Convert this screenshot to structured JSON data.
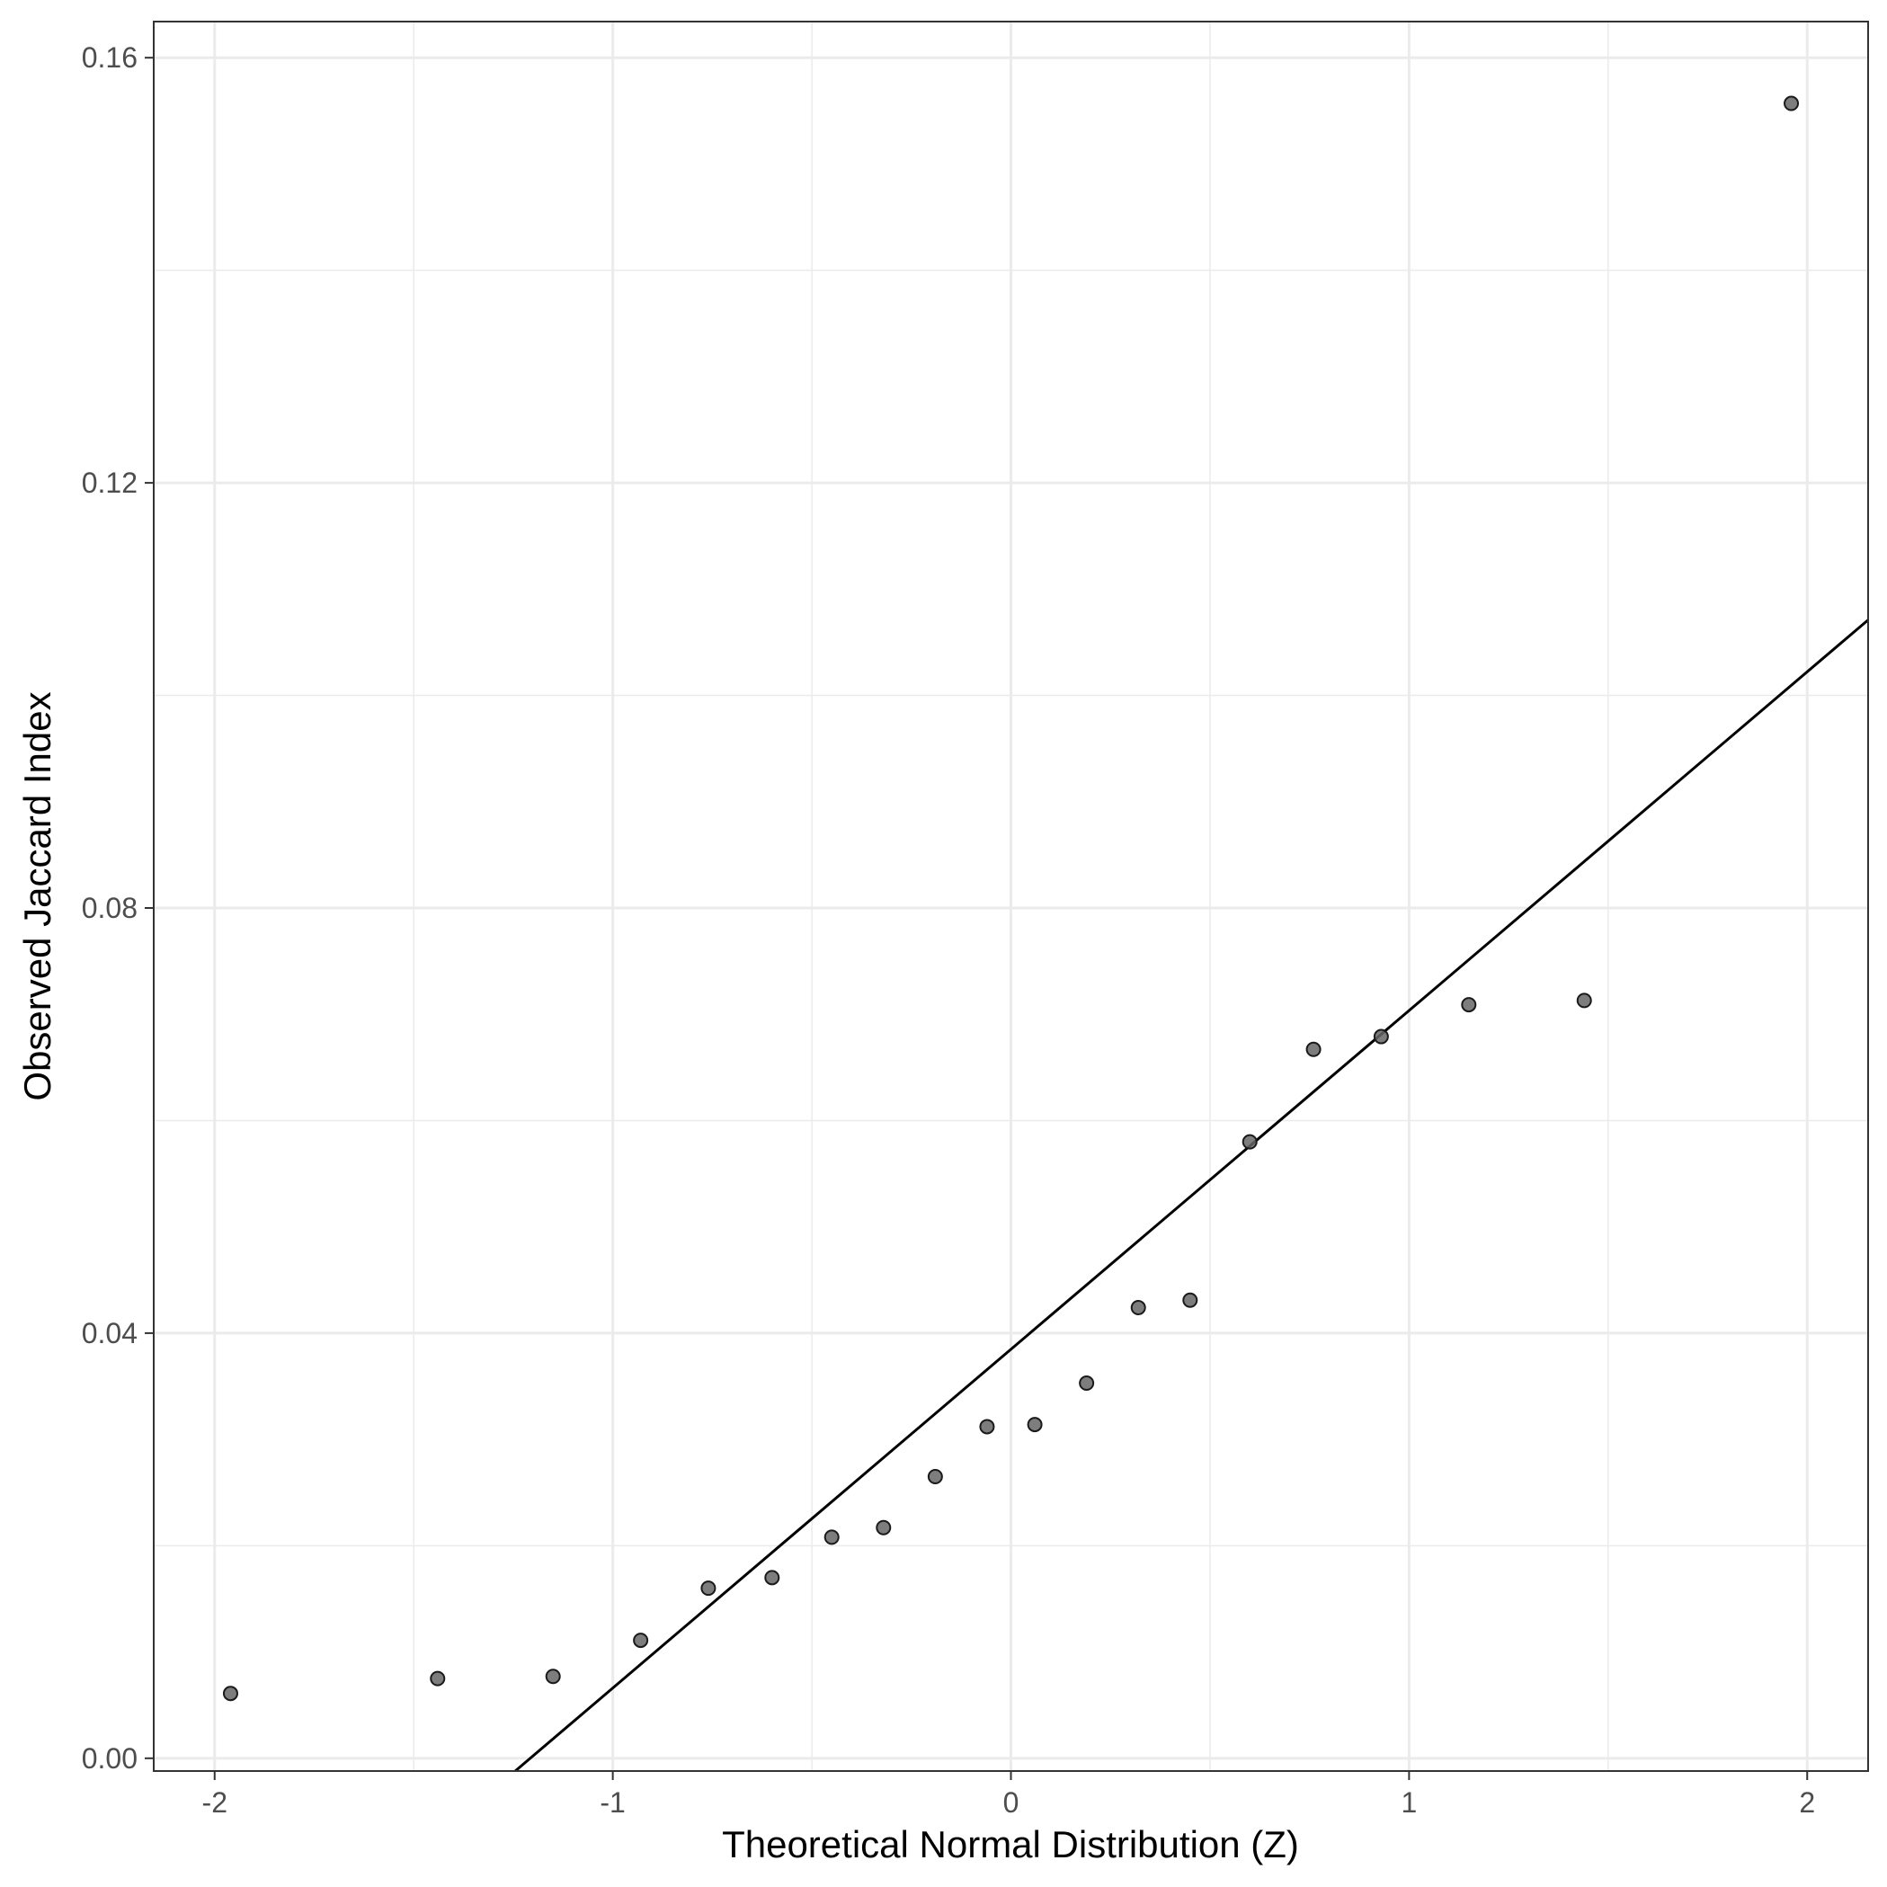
{
  "chart_data": {
    "type": "scatter",
    "title": "",
    "xlabel": "Theoretical Normal Distribution (Z)",
    "ylabel": "Observed Jaccard Index",
    "xlim": [
      -2.153,
      2.153
    ],
    "ylim": [
      -0.0012,
      0.1634
    ],
    "x_ticks": [
      -2,
      -1,
      0,
      1,
      2
    ],
    "x_tick_labels": [
      "-2",
      "-1",
      "0",
      "1",
      "2"
    ],
    "y_ticks": [
      0.0,
      0.04,
      0.08,
      0.12,
      0.16
    ],
    "y_tick_labels": [
      "0.00",
      "0.04",
      "0.08",
      "0.12",
      "0.16"
    ],
    "x_minor_ticks": [
      -1.5,
      -0.5,
      0.5,
      1.5
    ],
    "y_minor_ticks": [
      0.02,
      0.06,
      0.1,
      0.14
    ],
    "grid": true,
    "legend": "none",
    "point_color": "#666666",
    "point_edge_color": "#1a1a1a",
    "line_color": "#000000",
    "series": [
      {
        "type": "scatter",
        "x": [
          -1.96,
          -1.44,
          -1.15,
          -0.93,
          -0.76,
          -0.6,
          -0.45,
          -0.32,
          -0.19,
          -0.06,
          0.06,
          0.19,
          0.32,
          0.45,
          0.6,
          0.76,
          0.93,
          1.15,
          1.44,
          1.96
        ],
        "y": [
          0.0061,
          0.0075,
          0.0077,
          0.0111,
          0.016,
          0.017,
          0.0208,
          0.0217,
          0.0265,
          0.0312,
          0.0314,
          0.0353,
          0.0424,
          0.0431,
          0.058,
          0.0667,
          0.0679,
          0.0709,
          0.0713,
          0.1557
        ]
      },
      {
        "type": "reference-line",
        "x": [
          -1.245,
          2.153
        ],
        "y": [
          -0.0012,
          0.1071
        ]
      }
    ]
  }
}
